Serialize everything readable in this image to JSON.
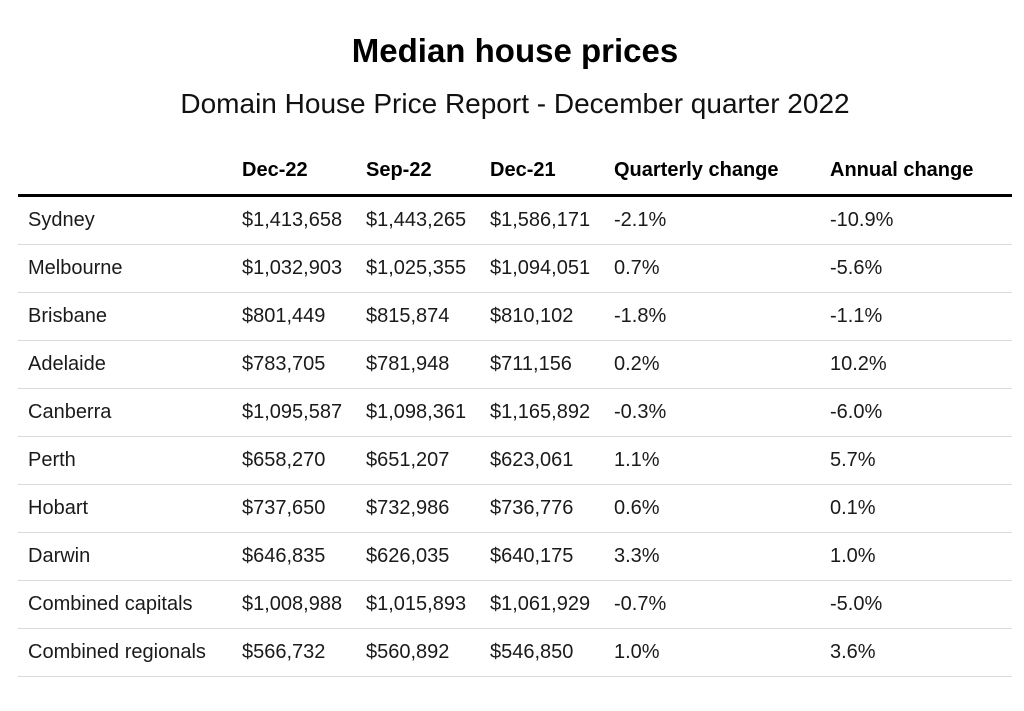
{
  "chart_data": {
    "type": "table",
    "title": "Median house prices",
    "subtitle": "Domain House Price Report - December quarter 2022",
    "columns": [
      "",
      "Dec-22",
      "Sep-22",
      "Dec-21",
      "Quarterly change",
      "Annual change"
    ],
    "rows": [
      [
        "Sydney",
        "$1,413,658",
        "$1,443,265",
        "$1,586,171",
        "-2.1%",
        "-10.9%"
      ],
      [
        "Melbourne",
        "$1,032,903",
        "$1,025,355",
        "$1,094,051",
        "0.7%",
        "-5.6%"
      ],
      [
        "Brisbane",
        "$801,449",
        "$815,874",
        "$810,102",
        "-1.8%",
        "-1.1%"
      ],
      [
        "Adelaide",
        "$783,705",
        "$781,948",
        "$711,156",
        "0.2%",
        "10.2%"
      ],
      [
        "Canberra",
        "$1,095,587",
        "$1,098,361",
        "$1,165,892",
        "-0.3%",
        "-6.0%"
      ],
      [
        "Perth",
        "$658,270",
        "$651,207",
        "$623,061",
        "1.1%",
        "5.7%"
      ],
      [
        "Hobart",
        "$737,650",
        "$732,986",
        "$736,776",
        "0.6%",
        "0.1%"
      ],
      [
        "Darwin",
        "$646,835",
        "$626,035",
        "$640,175",
        "3.3%",
        "1.0%"
      ],
      [
        "Combined capitals",
        "$1,008,988",
        "$1,015,893",
        "$1,061,929",
        "-0.7%",
        "-5.0%"
      ],
      [
        "Combined regionals",
        "$566,732",
        "$560,892",
        "$546,850",
        "1.0%",
        "3.6%"
      ]
    ],
    "header_rule_color": "#000000",
    "row_rule_color": "#d9d9d9"
  }
}
